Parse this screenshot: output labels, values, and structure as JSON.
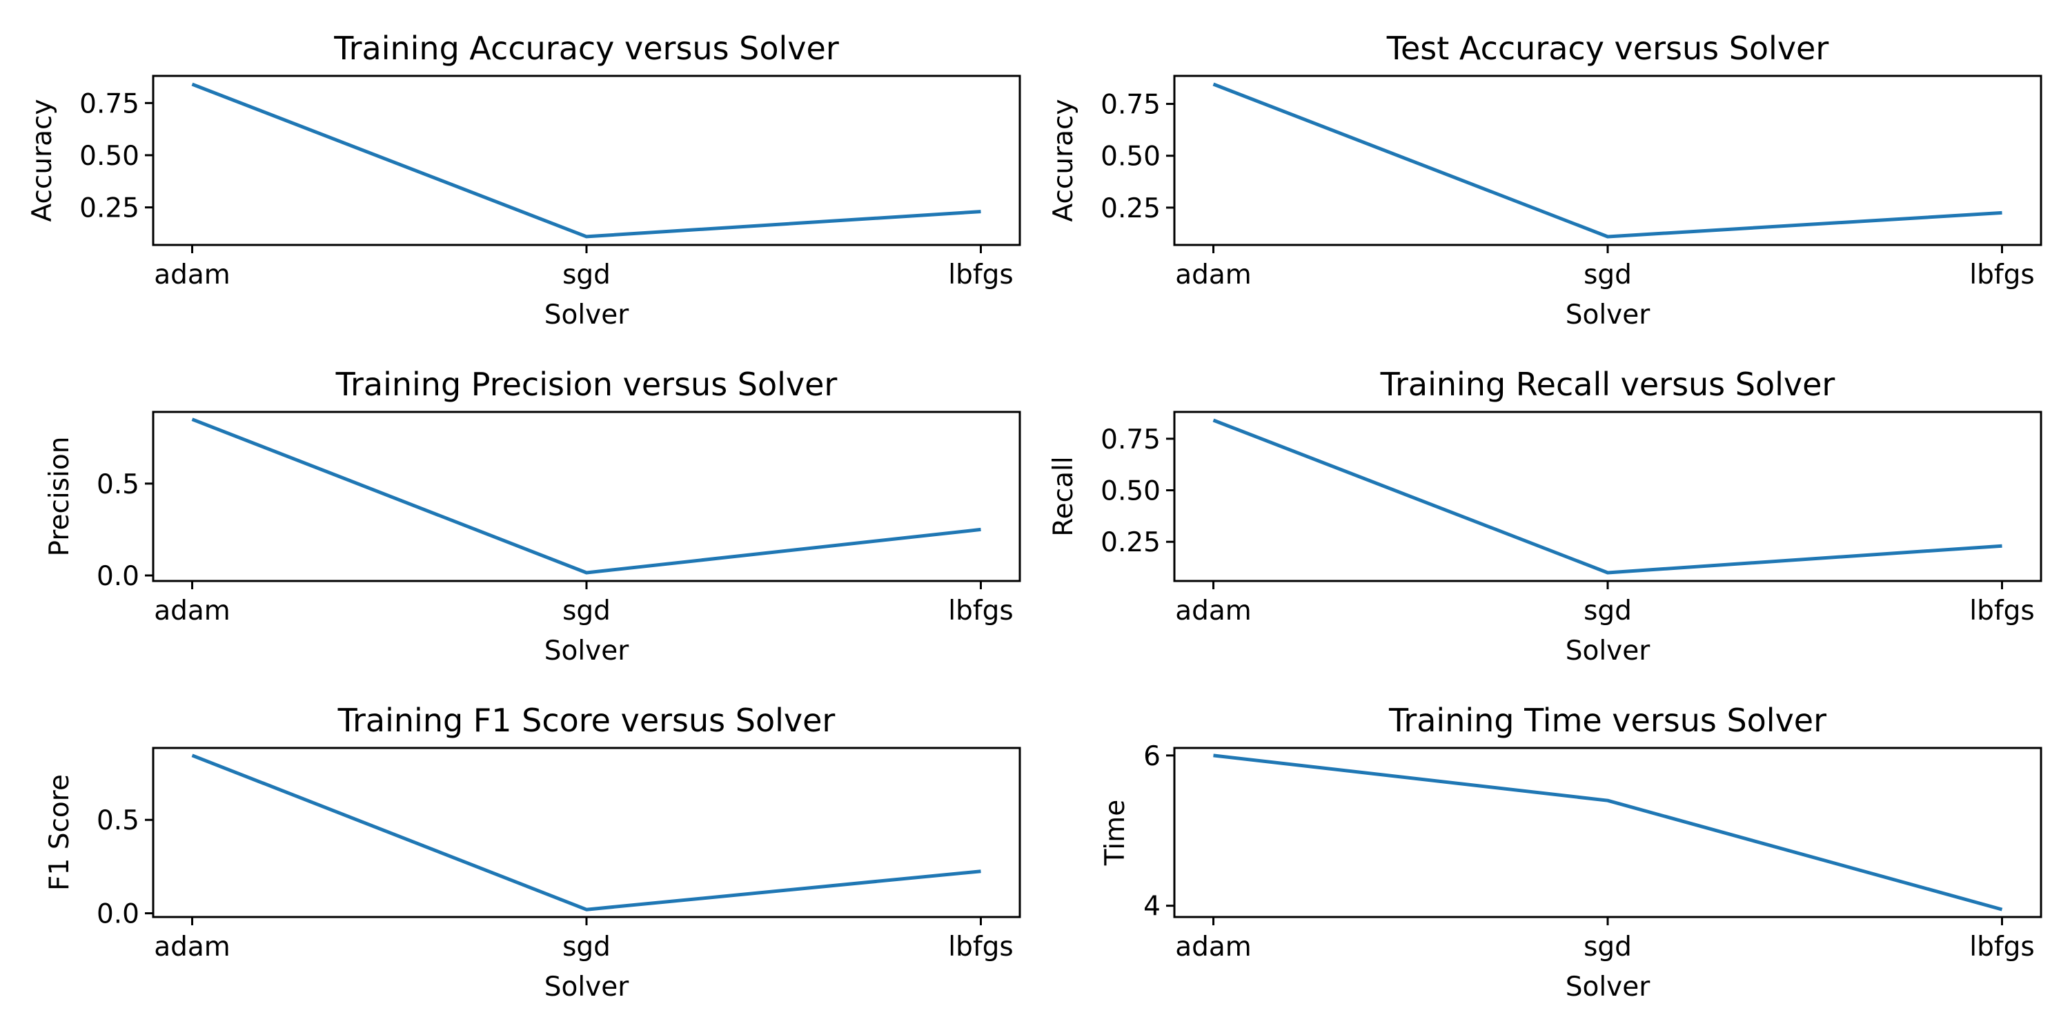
{
  "figure": {
    "line_color": "#1f77b4"
  },
  "chart_data": [
    {
      "type": "line",
      "title": "Training Accuracy versus Solver",
      "xlabel": "Solver",
      "ylabel": "Accuracy",
      "categories": [
        "adam",
        "sgd",
        "lbfgs"
      ],
      "series": [
        {
          "values": [
            0.84,
            0.11,
            0.23
          ]
        }
      ],
      "ylim": [
        0.07,
        0.88
      ],
      "yticks": [
        0.25,
        0.5,
        0.75
      ],
      "ytick_labels": [
        "0.25",
        "0.50",
        "0.75"
      ],
      "grid": false
    },
    {
      "type": "line",
      "title": "Test Accuracy versus Solver",
      "xlabel": "Solver",
      "ylabel": "Accuracy",
      "categories": [
        "adam",
        "sgd",
        "lbfgs"
      ],
      "series": [
        {
          "values": [
            0.845,
            0.11,
            0.225
          ]
        }
      ],
      "ylim": [
        0.07,
        0.885
      ],
      "yticks": [
        0.25,
        0.5,
        0.75
      ],
      "ytick_labels": [
        "0.25",
        "0.50",
        "0.75"
      ],
      "grid": false
    },
    {
      "type": "line",
      "title": "Training Precision versus Solver",
      "xlabel": "Solver",
      "ylabel": "Precision",
      "categories": [
        "adam",
        "sgd",
        "lbfgs"
      ],
      "series": [
        {
          "values": [
            0.85,
            0.015,
            0.25
          ]
        }
      ],
      "ylim": [
        -0.03,
        0.89
      ],
      "yticks": [
        0.0,
        0.5
      ],
      "ytick_labels": [
        "0.0",
        "0.5"
      ],
      "grid": false
    },
    {
      "type": "line",
      "title": "Training Recall versus Solver",
      "xlabel": "Solver",
      "ylabel": "Recall",
      "categories": [
        "adam",
        "sgd",
        "lbfgs"
      ],
      "series": [
        {
          "values": [
            0.84,
            0.1,
            0.23
          ]
        }
      ],
      "ylim": [
        0.06,
        0.88
      ],
      "yticks": [
        0.25,
        0.5,
        0.75
      ],
      "ytick_labels": [
        "0.25",
        "0.50",
        "0.75"
      ],
      "grid": false
    },
    {
      "type": "line",
      "title": "Training F1 Score versus Solver",
      "xlabel": "Solver",
      "ylabel": "F1 Score",
      "categories": [
        "adam",
        "sgd",
        "lbfgs"
      ],
      "series": [
        {
          "values": [
            0.845,
            0.02,
            0.225
          ]
        }
      ],
      "ylim": [
        -0.02,
        0.885
      ],
      "yticks": [
        0.0,
        0.5
      ],
      "ytick_labels": [
        "0.0",
        "0.5"
      ],
      "grid": false
    },
    {
      "type": "line",
      "title": "Training Time versus Solver",
      "xlabel": "Solver",
      "ylabel": "Time",
      "categories": [
        "adam",
        "sgd",
        "lbfgs"
      ],
      "series": [
        {
          "values": [
            6.0,
            5.4,
            3.95
          ]
        }
      ],
      "ylim": [
        3.85,
        6.1
      ],
      "yticks": [
        4,
        6
      ],
      "ytick_labels": [
        "4",
        "6"
      ],
      "grid": false
    }
  ]
}
